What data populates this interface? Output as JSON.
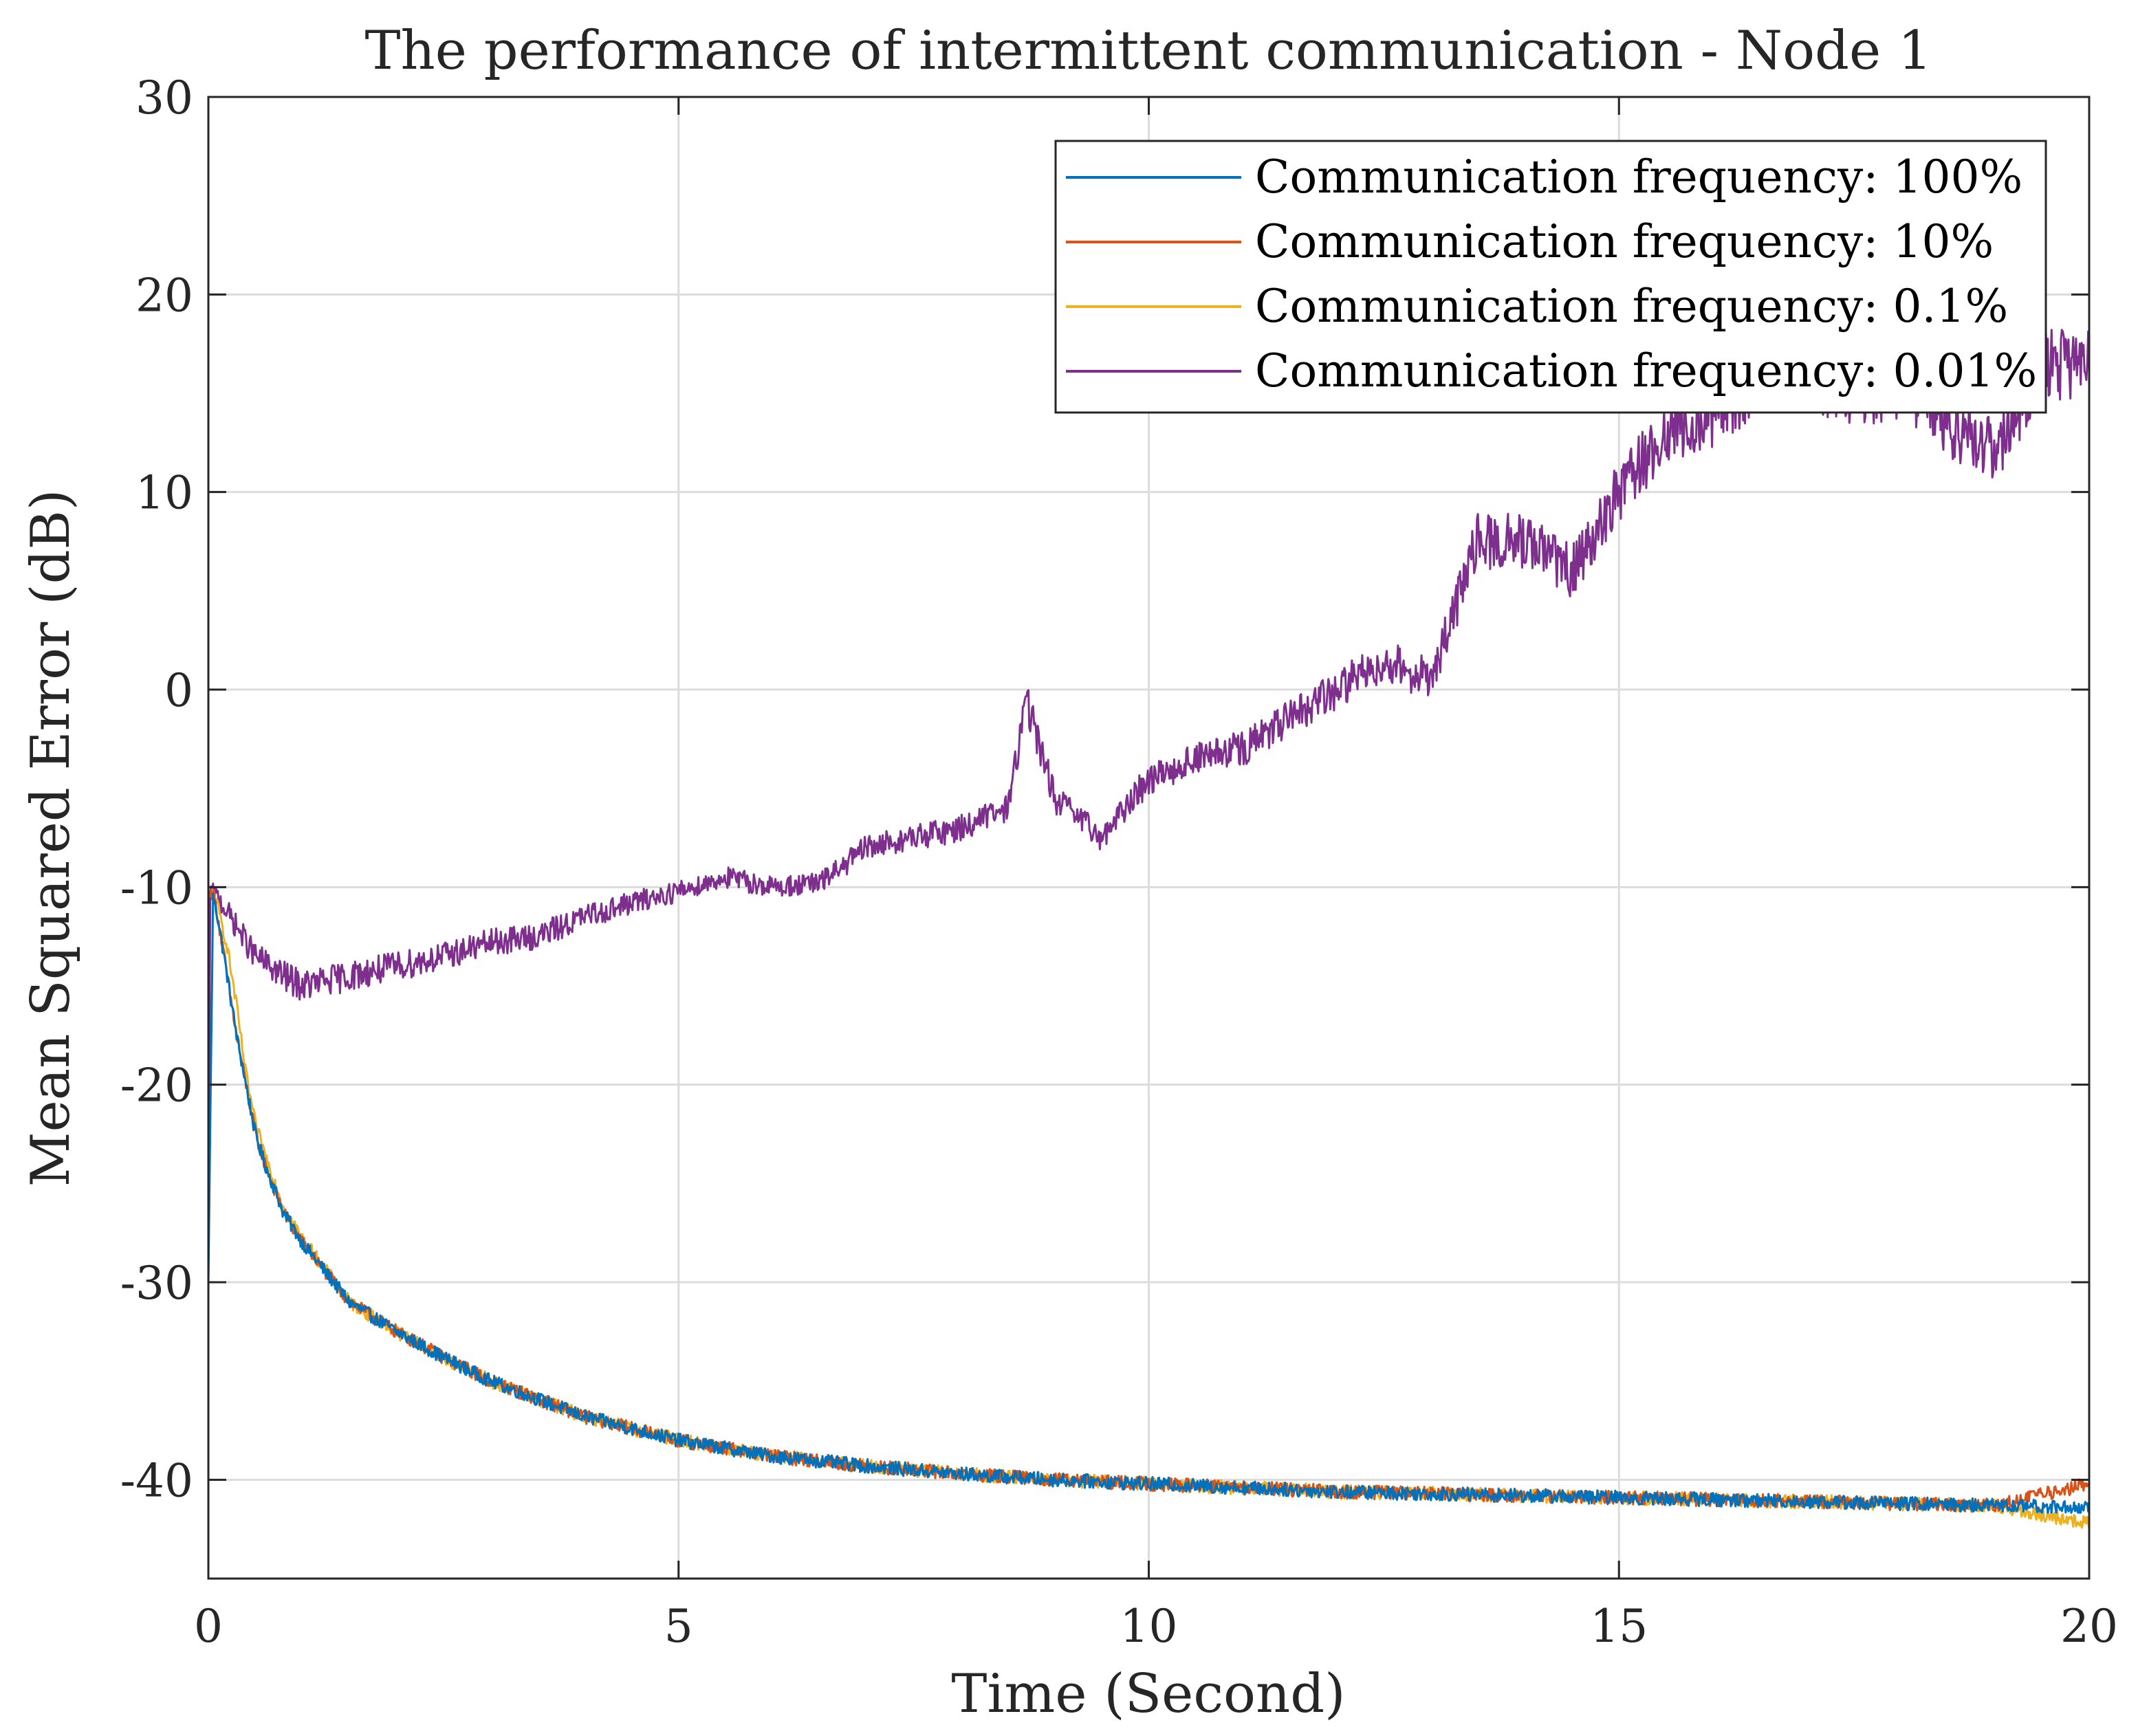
{
  "chart_data": {
    "type": "line",
    "title": "The performance of intermittent communication - Node 1",
    "xlabel": "Time (Second)",
    "ylabel": "Mean Squared Error (dB)",
    "xlim": [
      0,
      20
    ],
    "ylim": [
      -45,
      30
    ],
    "xticks": [
      0,
      5,
      10,
      15,
      20
    ],
    "yticks": [
      30,
      20,
      10,
      0,
      -10,
      -20,
      -30,
      -40
    ],
    "xtick_labels": [
      "0",
      "5",
      "10",
      "15",
      "20"
    ],
    "ytick_labels": [
      "30",
      "20",
      "10",
      "0",
      "-10",
      "-20",
      "-30",
      "-40"
    ],
    "grid": true,
    "legend_position": "top-right",
    "colors": {
      "series_100": "#0072bd",
      "series_10": "#d95319",
      "series_01": "#edb120",
      "series_001": "#7e2f8e",
      "grid": "#dcdcdc",
      "axis": "#262626"
    },
    "series": [
      {
        "name": "Communication frequency: 100%",
        "color": "#0072bd",
        "noise": 0.35,
        "x": [
          0,
          0.05,
          0.1,
          0.2,
          0.3,
          0.4,
          0.5,
          0.6,
          0.8,
          1,
          1.5,
          2,
          2.5,
          3,
          4,
          5,
          6,
          7,
          8,
          9,
          10,
          11,
          12,
          13,
          14,
          15,
          16,
          17,
          18,
          19,
          20
        ],
        "y": [
          -30,
          -10.5,
          -11.5,
          -14.5,
          -17.5,
          -20,
          -22.5,
          -24,
          -26.5,
          -28,
          -31,
          -32.5,
          -33.8,
          -35,
          -36.8,
          -38,
          -38.8,
          -39.3,
          -39.7,
          -40,
          -40.2,
          -40.4,
          -40.6,
          -40.7,
          -40.8,
          -40.9,
          -41,
          -41.1,
          -41.2,
          -41.3,
          -41.4
        ]
      },
      {
        "name": "Communication frequency: 10%",
        "color": "#d95319",
        "noise": 0.35,
        "x": [
          0,
          0.05,
          0.1,
          0.2,
          0.3,
          0.4,
          0.5,
          0.6,
          0.8,
          1,
          1.5,
          2,
          2.5,
          3,
          4,
          5,
          6,
          7,
          8,
          9,
          10,
          11,
          12,
          13,
          14,
          15,
          16,
          17,
          18,
          19,
          20
        ],
        "y": [
          -10.5,
          -10.2,
          -11.5,
          -14.5,
          -17.5,
          -20,
          -22.5,
          -24,
          -26.5,
          -28,
          -31,
          -32.5,
          -33.8,
          -35,
          -36.8,
          -38,
          -38.8,
          -39.3,
          -39.7,
          -40,
          -40.2,
          -40.4,
          -40.6,
          -40.7,
          -40.8,
          -40.9,
          -41,
          -41.1,
          -41.2,
          -41.3,
          -40.2
        ]
      },
      {
        "name": "Communication frequency: 0.1%",
        "color": "#edb120",
        "noise": 0.35,
        "x": [
          0,
          0.05,
          0.1,
          0.2,
          0.3,
          0.4,
          0.5,
          0.6,
          0.8,
          1,
          1.5,
          2,
          2.5,
          3,
          4,
          5,
          6,
          7,
          8,
          9,
          10,
          11,
          12,
          13,
          14,
          15,
          16,
          17,
          18,
          19,
          20
        ],
        "y": [
          -10.5,
          -10.3,
          -11,
          -13,
          -16,
          -19.5,
          -22,
          -23.5,
          -26.2,
          -27.8,
          -31,
          -32.5,
          -33.8,
          -35,
          -36.8,
          -38,
          -38.8,
          -39.3,
          -39.7,
          -40,
          -40.2,
          -40.4,
          -40.6,
          -40.7,
          -40.8,
          -40.9,
          -41,
          -41.1,
          -41.2,
          -41.3,
          -42.2
        ]
      },
      {
        "name": "Communication frequency: 0.01%",
        "color": "#7e2f8e",
        "noise": 0.9,
        "x": [
          0,
          0.02,
          0.1,
          0.3,
          0.5,
          0.8,
          1,
          1.5,
          2,
          2.5,
          3,
          3.5,
          4,
          4.5,
          5,
          5.5,
          6,
          6.5,
          7,
          7.5,
          8,
          8.5,
          8.7,
          9,
          9.5,
          10,
          10.5,
          11,
          11.5,
          12,
          12.5,
          13,
          13.5,
          14,
          14.5,
          15,
          15.5,
          16,
          16.5,
          17,
          17.5,
          18,
          18.5,
          19,
          19.5,
          20
        ],
        "y": [
          -30,
          -10.3,
          -10.5,
          -12,
          -13.5,
          -14.5,
          -15,
          -14.5,
          -14,
          -13.5,
          -12.8,
          -12.5,
          -11.5,
          -10.8,
          -10.2,
          -9.5,
          -10,
          -9.8,
          -8,
          -7.5,
          -7,
          -6,
          -0.5,
          -5.5,
          -7.5,
          -4.5,
          -3.5,
          -3,
          -1.5,
          0,
          1.5,
          0.5,
          7.5,
          7.5,
          6,
          10,
          13,
          14,
          15.5,
          16,
          15,
          15.5,
          13.5,
          12,
          16.5,
          16.5
        ]
      }
    ]
  }
}
